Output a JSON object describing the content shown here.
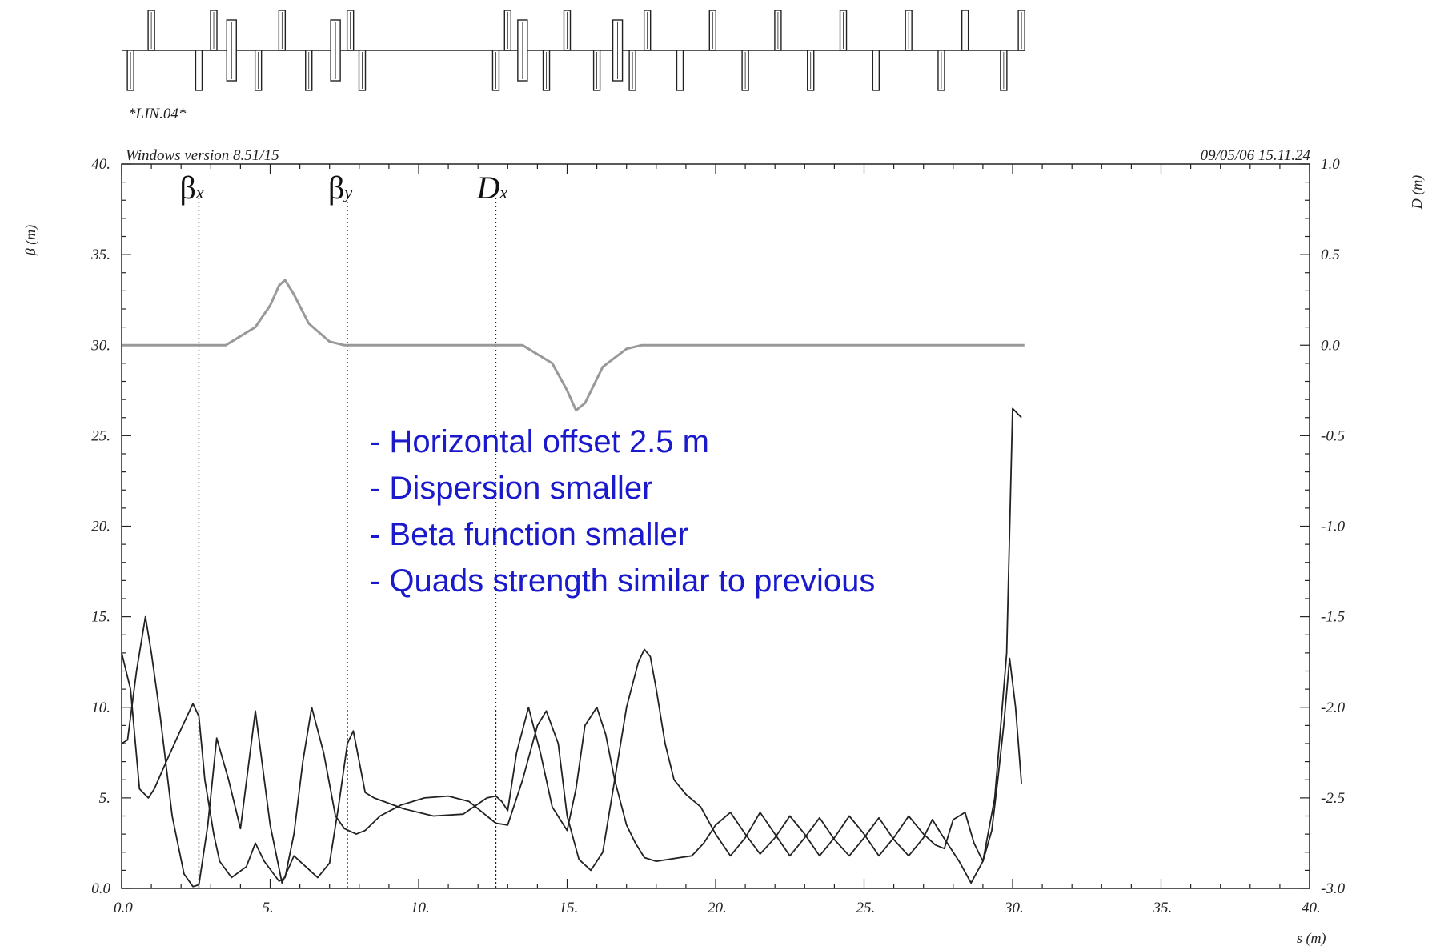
{
  "lattice_label": "*LIN.04*",
  "header_left": "Windows version 8.51/15",
  "header_right": "09/05/06  15.11.24",
  "chart_data": {
    "type": "line",
    "xlabel": "s (m)",
    "ylabel": "β (m)",
    "y2label": "D (m)",
    "xlim": [
      0,
      40
    ],
    "ylim": [
      0,
      40
    ],
    "y2lim": [
      -3,
      1
    ],
    "xticks": [
      "0.0",
      "5.",
      "10.",
      "15.",
      "20.",
      "25.",
      "30.",
      "35.",
      "40."
    ],
    "yticks": [
      "0.0",
      "5.",
      "10.",
      "15.",
      "20.",
      "25.",
      "30.",
      "35.",
      "40."
    ],
    "y2ticks": [
      "-3.0",
      "-2.5",
      "-2.0",
      "-1.5",
      "-1.0",
      "-0.5",
      "0.0",
      "0.5",
      "1.0"
    ],
    "grid": false,
    "legend_labels": [
      {
        "sym": "β",
        "sub": "x",
        "x": 2.6
      },
      {
        "sym": "β",
        "sub": "y",
        "x": 7.6
      },
      {
        "sym": "D",
        "sub": "x",
        "x": 12.6
      }
    ],
    "series": [
      {
        "name": "βx",
        "axis": "left",
        "color": "#222222",
        "x": [
          0.0,
          0.3,
          0.6,
          0.9,
          1.1,
          1.5,
          2.0,
          2.4,
          2.6,
          2.8,
          3.1,
          3.3,
          3.7,
          4.2,
          4.5,
          4.8,
          5.3,
          5.5,
          5.8,
          6.1,
          6.4,
          6.8,
          7.2,
          7.5,
          7.9,
          8.2,
          8.7,
          9.4,
          10.2,
          11.0,
          11.7,
          12.3,
          12.6,
          13.0,
          13.5,
          14.0,
          14.3,
          14.7,
          15.0,
          15.4,
          15.8,
          16.2,
          16.6,
          17.0,
          17.4,
          17.6,
          17.8,
          18.0,
          18.3,
          18.6,
          19.0,
          19.5,
          20.0,
          20.5,
          21.0,
          21.5,
          22.0,
          22.5,
          23.0,
          23.5,
          24.0,
          24.5,
          25.0,
          25.5,
          26.0,
          26.5,
          27.0,
          27.3,
          27.6,
          27.8,
          28.2,
          28.6,
          29.0,
          29.4,
          29.6,
          29.8,
          30.0,
          30.3
        ],
        "y": [
          13.0,
          11.0,
          5.5,
          5.0,
          5.5,
          7.0,
          8.8,
          10.2,
          9.5,
          6.0,
          3.0,
          1.5,
          0.6,
          1.2,
          2.5,
          1.5,
          0.4,
          0.6,
          3.0,
          7.0,
          10.0,
          7.5,
          4.0,
          3.3,
          3.0,
          3.2,
          4.0,
          4.6,
          5.0,
          5.1,
          4.8,
          4.0,
          3.6,
          3.5,
          6.0,
          9.0,
          9.8,
          8.0,
          4.0,
          1.6,
          1.0,
          2.0,
          6.0,
          10.0,
          12.5,
          13.2,
          12.8,
          11.0,
          8.0,
          6.0,
          5.2,
          4.5,
          3.0,
          1.8,
          2.8,
          4.2,
          3.0,
          1.8,
          2.8,
          3.9,
          2.7,
          1.8,
          2.8,
          3.9,
          2.7,
          1.8,
          2.8,
          3.8,
          3.0,
          2.5,
          1.5,
          0.3,
          1.5,
          5.0,
          9.0,
          13.0,
          26.5,
          26.0
        ]
      },
      {
        "name": "βy",
        "axis": "left",
        "color": "#222222",
        "x": [
          0.0,
          0.2,
          0.5,
          0.8,
          1.0,
          1.3,
          1.7,
          2.1,
          2.4,
          2.6,
          2.9,
          3.2,
          3.6,
          4.0,
          4.5,
          5.0,
          5.4,
          5.8,
          6.2,
          6.6,
          7.0,
          7.3,
          7.6,
          7.8,
          8.0,
          8.2,
          8.5,
          9.5,
          10.5,
          11.5,
          12.3,
          12.6,
          12.8,
          13.0,
          13.3,
          13.7,
          14.1,
          14.5,
          15.0,
          15.3,
          15.6,
          16.0,
          16.3,
          16.6,
          17.0,
          17.3,
          17.6,
          18.0,
          18.4,
          18.8,
          19.2,
          19.6,
          20.0,
          20.5,
          21.0,
          21.5,
          22.0,
          22.5,
          23.0,
          23.5,
          24.0,
          24.5,
          25.0,
          25.5,
          26.0,
          26.5,
          27.0,
          27.4,
          27.7,
          28.0,
          28.4,
          28.7,
          29.0,
          29.3,
          29.5,
          29.7,
          29.9,
          30.1,
          30.3
        ],
        "y": [
          8.0,
          8.2,
          12.0,
          15.0,
          13.0,
          9.5,
          4.0,
          0.8,
          0.1,
          0.2,
          3.5,
          8.3,
          6.0,
          3.3,
          9.8,
          3.5,
          0.3,
          1.8,
          1.2,
          0.6,
          1.4,
          4.5,
          8.0,
          8.7,
          7.0,
          5.3,
          5.0,
          4.4,
          4.0,
          4.1,
          5.0,
          5.1,
          4.8,
          4.3,
          7.5,
          10.0,
          7.5,
          4.5,
          3.2,
          5.5,
          9.0,
          10.0,
          8.5,
          6.0,
          3.5,
          2.5,
          1.7,
          1.5,
          1.6,
          1.7,
          1.8,
          2.5,
          3.5,
          4.2,
          3.0,
          1.9,
          2.8,
          4.0,
          3.0,
          1.8,
          2.8,
          4.0,
          3.0,
          1.8,
          2.8,
          4.0,
          3.0,
          2.4,
          2.2,
          3.8,
          4.2,
          2.5,
          1.5,
          3.2,
          6.0,
          9.0,
          12.7,
          10.0,
          5.8
        ]
      },
      {
        "name": "Dx",
        "axis": "right",
        "color": "#999999",
        "x": [
          0.0,
          3.5,
          4.5,
          5.0,
          5.3,
          5.5,
          5.8,
          6.3,
          7.0,
          7.5,
          8.0,
          10.0,
          12.5,
          13.5,
          14.5,
          15.0,
          15.3,
          15.6,
          16.2,
          17.0,
          17.5,
          20.0,
          25.0,
          30.4
        ],
        "y": [
          0.0,
          0.0,
          0.1,
          0.22,
          0.33,
          0.36,
          0.28,
          0.12,
          0.02,
          0.0,
          0.0,
          0.0,
          0.0,
          0.0,
          -0.1,
          -0.25,
          -0.36,
          -0.32,
          -0.12,
          -0.02,
          0.0,
          0.0,
          0.0,
          0.0
        ]
      }
    ]
  },
  "notes": [
    "- Horizontal offset 2.5 m",
    "- Dispersion smaller",
    "- Beta function smaller",
    "- Quads strength similar to previous"
  ],
  "note_color": "#1a1acc",
  "lattice": {
    "description": "magnet sequence above the plot; s position (m), type and polarity",
    "elements": [
      {
        "s": 0.3,
        "type": "quad",
        "pol": -1
      },
      {
        "s": 1.0,
        "type": "quad",
        "pol": 1
      },
      {
        "s": 2.6,
        "type": "quad",
        "pol": -1
      },
      {
        "s": 3.1,
        "type": "quad",
        "pol": 1
      },
      {
        "s": 3.7,
        "type": "bend",
        "pol": 0
      },
      {
        "s": 4.6,
        "type": "quad",
        "pol": -1
      },
      {
        "s": 5.4,
        "type": "quad",
        "pol": 1
      },
      {
        "s": 6.3,
        "type": "quad",
        "pol": -1
      },
      {
        "s": 7.2,
        "type": "bend",
        "pol": 0
      },
      {
        "s": 7.7,
        "type": "quad",
        "pol": 1
      },
      {
        "s": 8.1,
        "type": "quad",
        "pol": -1
      },
      {
        "s": 12.6,
        "type": "quad",
        "pol": -1
      },
      {
        "s": 13.0,
        "type": "quad",
        "pol": 1
      },
      {
        "s": 13.5,
        "type": "bend",
        "pol": 0
      },
      {
        "s": 14.3,
        "type": "quad",
        "pol": -1
      },
      {
        "s": 15.0,
        "type": "quad",
        "pol": 1
      },
      {
        "s": 16.0,
        "type": "quad",
        "pol": -1
      },
      {
        "s": 16.7,
        "type": "bend",
        "pol": 0
      },
      {
        "s": 17.2,
        "type": "quad",
        "pol": -1
      },
      {
        "s": 17.7,
        "type": "quad",
        "pol": 1
      },
      {
        "s": 18.8,
        "type": "quad",
        "pol": -1
      },
      {
        "s": 19.9,
        "type": "quad",
        "pol": 1
      },
      {
        "s": 21.0,
        "type": "quad",
        "pol": -1
      },
      {
        "s": 22.1,
        "type": "quad",
        "pol": 1
      },
      {
        "s": 23.2,
        "type": "quad",
        "pol": -1
      },
      {
        "s": 24.3,
        "type": "quad",
        "pol": 1
      },
      {
        "s": 25.4,
        "type": "quad",
        "pol": -1
      },
      {
        "s": 26.5,
        "type": "quad",
        "pol": 1
      },
      {
        "s": 27.6,
        "type": "quad",
        "pol": -1
      },
      {
        "s": 28.4,
        "type": "quad",
        "pol": 1
      },
      {
        "s": 29.7,
        "type": "quad",
        "pol": -1
      },
      {
        "s": 30.3,
        "type": "quad",
        "pol": 1
      }
    ]
  }
}
